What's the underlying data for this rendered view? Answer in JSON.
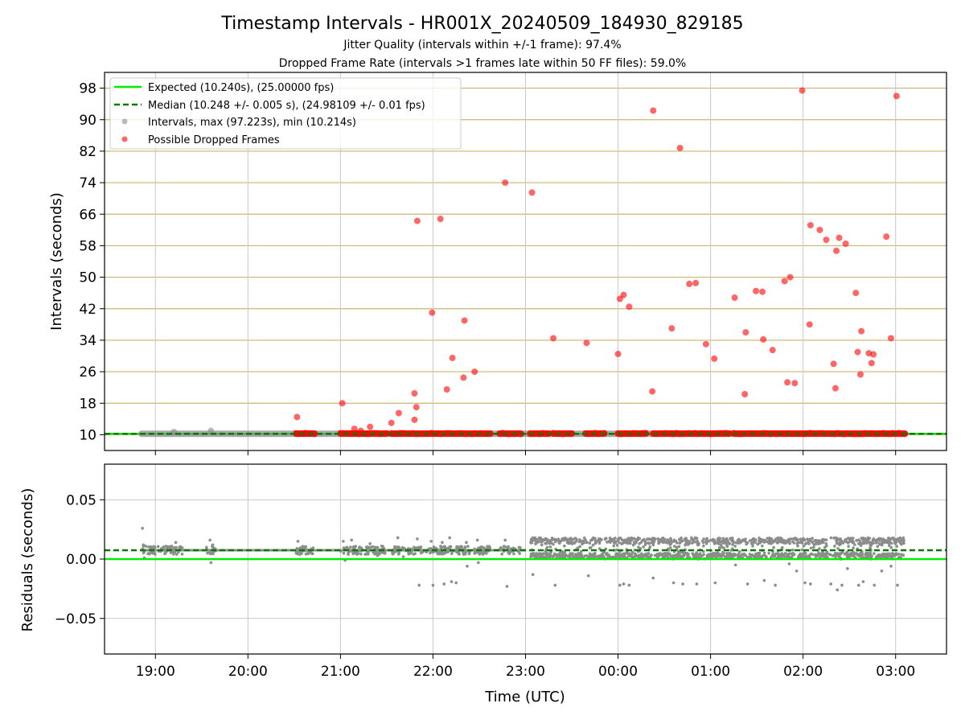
{
  "title": "Timestamp Intervals - HR001X_20240509_184930_829185",
  "subtitle1": "Jitter Quality (intervals within +/-1 frame): 97.4%",
  "subtitle2": "Dropped Frame Rate (intervals >1 frames late within 50 FF files): 59.0%",
  "colors": {
    "expected": "#00ee00",
    "median": "#007a00",
    "intervals": "#8c8c8c",
    "dropped": "#ff0000",
    "hgrid": "#cdb46e",
    "grid": "#c8c8c8"
  },
  "chart_data": [
    {
      "type": "scatter",
      "ylabel": "Intervals (seconds)",
      "ylim": [
        6,
        102
      ],
      "xlim_hours": [
        18.45,
        27.55
      ],
      "y_ticks": [
        10,
        18,
        26,
        34,
        42,
        50,
        58,
        66,
        74,
        82,
        90,
        98
      ],
      "y_tick_labels": [
        "10",
        "18",
        "26",
        "34",
        "42",
        "50",
        "58",
        "66",
        "74",
        "82",
        "90",
        "98"
      ],
      "grid": true,
      "legend_position": "top-left",
      "legend": [
        "Expected (10.240s), (25.00000 fps)",
        "Median (10.248 +/- 0.005 s), (24.98109 +/- 0.01 fps)",
        "Intervals, max (97.223s), min (10.214s)",
        "Possible Dropped Frames"
      ],
      "expected": 10.24,
      "median": 10.248,
      "series": [
        {
          "name": "Intervals, max (97.223s), min (10.214s)",
          "segments_hours": [
            [
              18.85,
              20.6
            ],
            [
              20.6,
              27.1
            ]
          ],
          "y": 10.24,
          "points": [
            [
              19.6,
              11.0
            ],
            [
              19.2,
              10.7
            ]
          ]
        },
        {
          "name": "Possible Dropped Frames",
          "baseline_segments_hours": [
            [
              20.52,
              20.72
            ],
            [
              21.0,
              21.5
            ],
            [
              21.55,
              22.62
            ],
            [
              22.72,
              22.95
            ],
            [
              23.05,
              23.25
            ],
            [
              23.3,
              23.5
            ],
            [
              23.65,
              23.85
            ],
            [
              24.0,
              24.3
            ],
            [
              24.38,
              24.58
            ],
            [
              24.6,
              25.2
            ],
            [
              25.25,
              27.1
            ]
          ],
          "points": [
            [
              20.53,
              14.5
            ],
            [
              21.02,
              18.0
            ],
            [
              21.15,
              11.5
            ],
            [
              21.22,
              11.0
            ],
            [
              21.32,
              12.0
            ],
            [
              21.55,
              13.0
            ],
            [
              21.63,
              15.5
            ],
            [
              21.8,
              20.5
            ],
            [
              21.8,
              13.8
            ],
            [
              21.82,
              17.0
            ],
            [
              21.83,
              64.3
            ],
            [
              21.99,
              41.0
            ],
            [
              22.08,
              64.8
            ],
            [
              22.15,
              21.5
            ],
            [
              22.21,
              29.5
            ],
            [
              22.33,
              24.5
            ],
            [
              22.34,
              39.0
            ],
            [
              22.45,
              26.0
            ],
            [
              22.78,
              74.0
            ],
            [
              23.07,
              71.5
            ],
            [
              23.3,
              34.5
            ],
            [
              23.66,
              33.3
            ],
            [
              24.0,
              30.5
            ],
            [
              24.02,
              44.5
            ],
            [
              24.06,
              45.5
            ],
            [
              24.12,
              42.5
            ],
            [
              24.37,
              21.0
            ],
            [
              24.38,
              92.3
            ],
            [
              24.67,
              82.8
            ],
            [
              24.58,
              37.0
            ],
            [
              24.77,
              48.3
            ],
            [
              24.84,
              48.5
            ],
            [
              24.95,
              33.0
            ],
            [
              25.04,
              29.3
            ],
            [
              25.26,
              44.8
            ],
            [
              25.37,
              20.3
            ],
            [
              25.38,
              36.0
            ],
            [
              25.49,
              46.5
            ],
            [
              25.56,
              46.3
            ],
            [
              25.57,
              34.2
            ],
            [
              25.67,
              31.5
            ],
            [
              25.8,
              49.0
            ],
            [
              25.83,
              23.3
            ],
            [
              25.86,
              50.0
            ],
            [
              25.91,
              23.1
            ],
            [
              25.99,
              97.4
            ],
            [
              26.07,
              38.0
            ],
            [
              26.08,
              63.2
            ],
            [
              26.18,
              62.0
            ],
            [
              26.25,
              59.5
            ],
            [
              26.33,
              28.0
            ],
            [
              26.35,
              21.8
            ],
            [
              26.36,
              56.7
            ],
            [
              26.39,
              60.0
            ],
            [
              26.46,
              58.5
            ],
            [
              26.57,
              46.0
            ],
            [
              26.59,
              31.0
            ],
            [
              26.62,
              25.3
            ],
            [
              26.63,
              36.3
            ],
            [
              26.71,
              30.7
            ],
            [
              26.74,
              28.2
            ],
            [
              26.76,
              30.4
            ],
            [
              26.9,
              60.3
            ],
            [
              26.95,
              34.5
            ],
            [
              27.01,
              96.0
            ]
          ]
        }
      ]
    },
    {
      "type": "scatter",
      "xlabel": "Time (UTC)",
      "ylabel": "Residuals (seconds)",
      "ylim": [
        -0.08,
        0.08
      ],
      "y_ticks": [
        0.05,
        0.0,
        -0.05
      ],
      "y_tick_labels": [
        "0.05",
        "0.00",
        "−0.05"
      ],
      "x_ticks_hours": [
        19,
        20,
        21,
        22,
        23,
        24,
        25,
        26,
        27
      ],
      "x_tick_labels": [
        "19:00",
        "20:00",
        "21:00",
        "22:00",
        "23:00",
        "00:00",
        "01:00",
        "02:00",
        "03:00"
      ],
      "grid": true,
      "expected": 0.0,
      "median": 0.0075,
      "series": [
        {
          "name": "Residuals",
          "points": [
            [
              18.86,
              0.026
            ],
            [
              18.87,
              0.012
            ],
            [
              18.88,
              0.001
            ],
            [
              18.95,
              0.009
            ],
            [
              19.1,
              0.008
            ],
            [
              19.22,
              0.014
            ],
            [
              19.23,
              0.004
            ],
            [
              19.26,
              0.01
            ],
            [
              19.59,
              0.016
            ],
            [
              19.6,
              -0.003
            ],
            [
              19.62,
              0.012
            ],
            [
              20.54,
              0.015
            ],
            [
              20.56,
              0.004
            ],
            [
              21.03,
              0.015
            ],
            [
              21.05,
              -0.001
            ],
            [
              21.12,
              0.016
            ],
            [
              21.18,
              0.004
            ],
            [
              21.32,
              0.013
            ],
            [
              21.4,
              0.003
            ],
            [
              21.62,
              0.018
            ],
            [
              21.68,
              0.002
            ],
            [
              21.83,
              0.017
            ],
            [
              21.85,
              -0.022
            ],
            [
              21.98,
              0.015
            ],
            [
              22.0,
              -0.022
            ],
            [
              22.1,
              0.014
            ],
            [
              22.12,
              -0.021
            ],
            [
              22.18,
              0.018
            ],
            [
              22.2,
              -0.019
            ],
            [
              22.25,
              -0.02
            ],
            [
              22.36,
              0.014
            ],
            [
              22.37,
              -0.006
            ],
            [
              22.48,
              0.016
            ],
            [
              22.49,
              -0.003
            ],
            [
              22.78,
              0.016
            ],
            [
              22.8,
              -0.023
            ],
            [
              23.08,
              -0.013
            ],
            [
              23.32,
              -0.022
            ],
            [
              23.68,
              -0.014
            ],
            [
              24.02,
              -0.022
            ],
            [
              24.06,
              -0.021
            ],
            [
              24.12,
              -0.022
            ],
            [
              24.38,
              -0.016
            ],
            [
              24.6,
              -0.02
            ],
            [
              24.7,
              -0.021
            ],
            [
              24.85,
              -0.021
            ],
            [
              25.05,
              -0.02
            ],
            [
              25.27,
              -0.005
            ],
            [
              25.4,
              -0.021
            ],
            [
              25.58,
              -0.018
            ],
            [
              25.7,
              -0.022
            ],
            [
              25.85,
              -0.004
            ],
            [
              25.93,
              -0.01
            ],
            [
              26.02,
              -0.02
            ],
            [
              26.08,
              -0.021
            ],
            [
              26.3,
              -0.021
            ],
            [
              26.37,
              -0.026
            ],
            [
              26.42,
              -0.022
            ],
            [
              26.48,
              -0.008
            ],
            [
              26.6,
              -0.022
            ],
            [
              26.65,
              -0.019
            ],
            [
              26.77,
              -0.022
            ],
            [
              26.85,
              -0.01
            ],
            [
              26.95,
              -0.006
            ],
            [
              27.02,
              -0.022
            ]
          ],
          "dense_band": {
            "x_range_hours": [
              23.05,
              27.1
            ],
            "y_range": [
              0.0,
              0.017
            ]
          },
          "sparse_band": {
            "x_range_hours": [
              18.85,
              23.0
            ],
            "y_range": [
              0.004,
              0.011
            ]
          }
        }
      ]
    }
  ]
}
